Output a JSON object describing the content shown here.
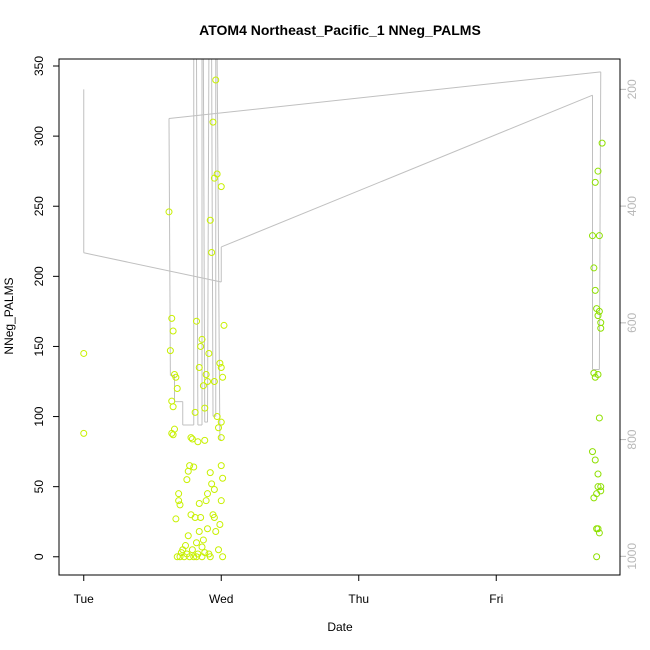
{
  "chart_data": {
    "type": "scatter",
    "title": "ATOM4 Northeast_Pacific_1 NNeg_PALMS",
    "xlabel": "Date",
    "ylabel": "NNeg_PALMS",
    "x_axis_days": [
      "Tue",
      "Wed",
      "Thu",
      "Fri"
    ],
    "x_unit": "days since Tue 00:00",
    "xlim": [
      -0.18,
      3.9
    ],
    "ylim": [
      -13,
      355
    ],
    "y_ticks": [
      0,
      50,
      100,
      150,
      200,
      250,
      300,
      350
    ],
    "right_axis": {
      "label": "",
      "reversed": true,
      "ticks": [
        200,
        400,
        600,
        800,
        1000
      ],
      "lim": [
        148,
        1032
      ]
    },
    "grid": false,
    "colors": {
      "points_early": "#c8f000",
      "points_late": "#8ee000",
      "depth_line": "#c0c0c0",
      "axis": "#000000",
      "right_axis": "#b8b8b8"
    },
    "series": [
      {
        "kind": "points",
        "points": [
          [
            0.0,
            145
          ],
          [
            0.0,
            88
          ],
          [
            0.62,
            246
          ],
          [
            0.63,
            147
          ],
          [
            0.64,
            170
          ],
          [
            0.64,
            111
          ],
          [
            0.65,
            161
          ],
          [
            0.65,
            107
          ],
          [
            0.64,
            88
          ],
          [
            0.65,
            87
          ],
          [
            0.66,
            130
          ],
          [
            0.67,
            128
          ],
          [
            0.68,
            120
          ],
          [
            0.66,
            91
          ],
          [
            0.67,
            27
          ],
          [
            0.68,
            0
          ],
          [
            0.69,
            45
          ],
          [
            0.69,
            40
          ],
          [
            0.7,
            37
          ],
          [
            0.7,
            0
          ],
          [
            0.71,
            3
          ],
          [
            0.72,
            5
          ],
          [
            0.73,
            0
          ],
          [
            0.74,
            8
          ],
          [
            0.75,
            2
          ],
          [
            0.75,
            55
          ],
          [
            0.76,
            15
          ],
          [
            0.76,
            61
          ],
          [
            0.77,
            65
          ],
          [
            0.77,
            0
          ],
          [
            0.78,
            85
          ],
          [
            0.78,
            30
          ],
          [
            0.79,
            84
          ],
          [
            0.79,
            5
          ],
          [
            0.8,
            64
          ],
          [
            0.8,
            0
          ],
          [
            0.81,
            103
          ],
          [
            0.81,
            28
          ],
          [
            0.82,
            168
          ],
          [
            0.82,
            10
          ],
          [
            0.83,
            82
          ],
          [
            0.83,
            2
          ],
          [
            0.84,
            135
          ],
          [
            0.84,
            38
          ],
          [
            0.85,
            150
          ],
          [
            0.85,
            28
          ],
          [
            0.86,
            155
          ],
          [
            0.86,
            0
          ],
          [
            0.87,
            122
          ],
          [
            0.87,
            12
          ],
          [
            0.88,
            106
          ],
          [
            0.88,
            83
          ],
          [
            0.89,
            130
          ],
          [
            0.89,
            40
          ],
          [
            0.9,
            125
          ],
          [
            0.9,
            20
          ],
          [
            0.91,
            145
          ],
          [
            0.91,
            2
          ],
          [
            0.92,
            240
          ],
          [
            0.92,
            60
          ],
          [
            0.93,
            217
          ],
          [
            0.93,
            52
          ],
          [
            0.94,
            310
          ],
          [
            0.94,
            30
          ],
          [
            0.95,
            270
          ],
          [
            0.95,
            48
          ],
          [
            0.96,
            340
          ],
          [
            0.96,
            18
          ],
          [
            0.97,
            273
          ],
          [
            0.97,
            100
          ],
          [
            0.98,
            92
          ],
          [
            0.98,
            5
          ],
          [
            0.99,
            138
          ],
          [
            0.99,
            23
          ],
          [
            1.0,
            135
          ],
          [
            1.0,
            85
          ],
          [
            1.01,
            128
          ],
          [
            1.01,
            56
          ],
          [
            1.01,
            0
          ],
          [
            0.92,
            0
          ],
          [
            0.88,
            3
          ],
          [
            0.86,
            7
          ],
          [
            0.95,
            125
          ],
          [
            0.95,
            28
          ],
          [
            0.9,
            45
          ],
          [
            1.0,
            65
          ],
          [
            1.0,
            96
          ],
          [
            0.84,
            18
          ],
          [
            0.82,
            0
          ],
          [
            1.0,
            40
          ],
          [
            1.0,
            264
          ],
          [
            1.02,
            165
          ]
        ]
      },
      {
        "kind": "points",
        "points": [
          [
            3.7,
            229
          ],
          [
            3.72,
            267
          ],
          [
            3.74,
            275
          ],
          [
            3.75,
            229
          ],
          [
            3.77,
            295
          ],
          [
            3.71,
            206
          ],
          [
            3.72,
            190
          ],
          [
            3.73,
            177
          ],
          [
            3.74,
            172
          ],
          [
            3.75,
            175
          ],
          [
            3.76,
            163
          ],
          [
            3.76,
            167
          ],
          [
            3.71,
            131
          ],
          [
            3.72,
            128
          ],
          [
            3.74,
            130
          ],
          [
            3.75,
            99
          ],
          [
            3.7,
            75
          ],
          [
            3.72,
            69
          ],
          [
            3.74,
            59
          ],
          [
            3.73,
            45
          ],
          [
            3.74,
            50
          ],
          [
            3.76,
            50
          ],
          [
            3.76,
            47
          ],
          [
            3.71,
            42
          ],
          [
            3.74,
            20
          ],
          [
            3.75,
            17
          ],
          [
            3.73,
            20
          ],
          [
            3.73,
            0
          ]
        ]
      },
      {
        "kind": "line",
        "name": "depth",
        "points": [
          [
            0.0,
            200
          ],
          [
            0.0,
            480
          ],
          [
            1.0,
            530
          ],
          [
            1.0,
            470
          ],
          [
            3.7,
            210
          ],
          [
            3.7,
            680
          ],
          [
            3.75,
            680
          ],
          [
            3.76,
            170
          ],
          [
            0.62,
            250
          ],
          [
            0.63,
            690
          ],
          [
            0.66,
            690
          ],
          [
            0.66,
            735
          ],
          [
            0.72,
            735
          ],
          [
            0.72,
            775
          ],
          [
            0.8,
            775
          ],
          [
            0.8,
            148
          ],
          [
            0.82,
            148
          ],
          [
            0.83,
            775
          ],
          [
            0.86,
            775
          ],
          [
            0.86,
            148
          ],
          [
            0.87,
            148
          ],
          [
            0.88,
            770
          ],
          [
            0.9,
            770
          ],
          [
            0.91,
            148
          ],
          [
            0.93,
            148
          ],
          [
            0.94,
            760
          ],
          [
            0.96,
            760
          ],
          [
            0.96,
            148
          ],
          [
            0.97,
            148
          ],
          [
            0.99,
            800
          ],
          [
            1.0,
            800
          ]
        ]
      }
    ]
  }
}
